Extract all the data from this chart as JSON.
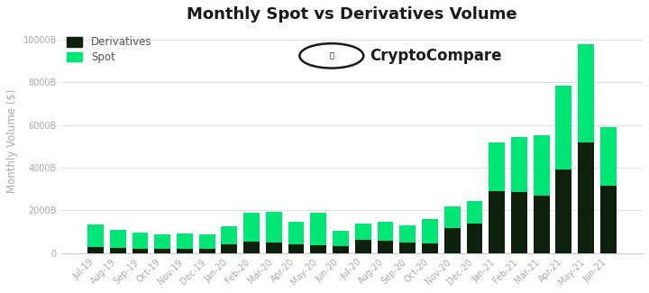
{
  "title": "Monthly Spot vs Derivatives Volume",
  "ylabel": "Monthly Volume ($)",
  "categories": [
    "Jul-19",
    "Aug-19",
    "Sep-19",
    "Oct-19",
    "Nov-19",
    "Dec-19",
    "Jan-20",
    "Feb-20",
    "Mar-20",
    "Apr-20",
    "May-20",
    "Jun-20",
    "Jul-20",
    "Aug-20",
    "Sep-20",
    "Oct-20",
    "Nov-20",
    "Dec-20",
    "Jan-21",
    "Feb-21",
    "Mar-21",
    "Apr-21",
    "May-21",
    "Jun-21"
  ],
  "derivatives": [
    280,
    230,
    200,
    190,
    180,
    190,
    420,
    520,
    500,
    410,
    380,
    330,
    630,
    560,
    490,
    450,
    1150,
    1400,
    2900,
    2850,
    2700,
    3900,
    5200,
    3150
  ],
  "spot": [
    1050,
    850,
    750,
    700,
    750,
    700,
    850,
    1380,
    1420,
    1050,
    1500,
    700,
    750,
    900,
    800,
    1150,
    1050,
    1050,
    2300,
    2600,
    2800,
    3950,
    4600,
    2750
  ],
  "bar_color_derivatives": "#0d1f0d",
  "bar_color_spot": "#00e676",
  "background_color": "#ffffff",
  "grid_color": "#dddddd",
  "ylim": [
    0,
    10500
  ],
  "yticks": [
    0,
    2000,
    4000,
    6000,
    8000,
    10000
  ],
  "ytick_labels": [
    "0",
    "2000B",
    "4000B",
    "6000B",
    "8000B",
    "10000B"
  ],
  "legend_derivatives": "Derivatives",
  "legend_spot": "Spot",
  "title_fontsize": 13,
  "label_fontsize": 8.5,
  "tick_fontsize": 7,
  "tick_color": "#aaaaaa",
  "label_color": "#aaaaaa",
  "cryptocompare_text": "CryptoCompare",
  "logo_fontsize": 12
}
